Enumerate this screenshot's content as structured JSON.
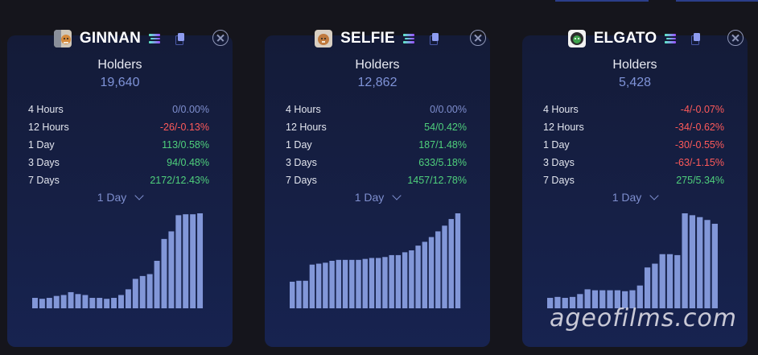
{
  "holders_label": "Holders",
  "cards": [
    {
      "name": "GINNAN",
      "holders": "19,640",
      "stats": [
        {
          "label": "4 Hours",
          "value": "0/0.00%",
          "trend": "neutral"
        },
        {
          "label": "12 Hours",
          "value": "-26/-0.13%",
          "trend": "neg"
        },
        {
          "label": "1 Day",
          "value": "113/0.58%",
          "trend": "pos"
        },
        {
          "label": "3 Days",
          "value": "94/0.48%",
          "trend": "pos"
        },
        {
          "label": "7 Days",
          "value": "2172/12.43%",
          "trend": "pos"
        }
      ],
      "period": "1 Day",
      "bars": [
        11,
        10,
        11,
        13,
        14,
        17,
        15,
        14,
        11,
        11,
        10,
        11,
        14,
        20,
        31,
        34,
        36,
        50,
        73,
        81,
        98,
        99,
        99,
        100
      ]
    },
    {
      "name": "SELFIE",
      "holders": "12,862",
      "stats": [
        {
          "label": "4 Hours",
          "value": "0/0.00%",
          "trend": "neutral"
        },
        {
          "label": "12 Hours",
          "value": "54/0.42%",
          "trend": "pos"
        },
        {
          "label": "1 Day",
          "value": "187/1.48%",
          "trend": "pos"
        },
        {
          "label": "3 Days",
          "value": "633/5.18%",
          "trend": "pos"
        },
        {
          "label": "7 Days",
          "value": "1457/12.78%",
          "trend": "pos"
        }
      ],
      "period": "1 Day",
      "bars": [
        28,
        29,
        29,
        46,
        47,
        48,
        50,
        51,
        51,
        51,
        51,
        52,
        53,
        53,
        54,
        56,
        56,
        59,
        61,
        66,
        70,
        75,
        81,
        87,
        94,
        100
      ]
    },
    {
      "name": "ELGATO",
      "holders": "5,428",
      "stats": [
        {
          "label": "4 Hours",
          "value": "-4/-0.07%",
          "trend": "neg"
        },
        {
          "label": "12 Hours",
          "value": "-34/-0.62%",
          "trend": "neg"
        },
        {
          "label": "1 Day",
          "value": "-30/-0.55%",
          "trend": "neg"
        },
        {
          "label": "3 Days",
          "value": "-63/-1.15%",
          "trend": "neg"
        },
        {
          "label": "7 Days",
          "value": "275/5.34%",
          "trend": "pos"
        }
      ],
      "period": "1 Day",
      "bars": [
        11,
        12,
        11,
        12,
        15,
        20,
        19,
        19,
        19,
        19,
        18,
        19,
        24,
        43,
        47,
        57,
        57,
        56,
        100,
        98,
        96,
        93,
        89
      ]
    }
  ],
  "watermark": "ageofilms.com",
  "colors": {
    "bar": "#8297d8",
    "positive": "#4fd07c",
    "negative": "#ff5a5a",
    "neutral": "#7f8fcf"
  }
}
